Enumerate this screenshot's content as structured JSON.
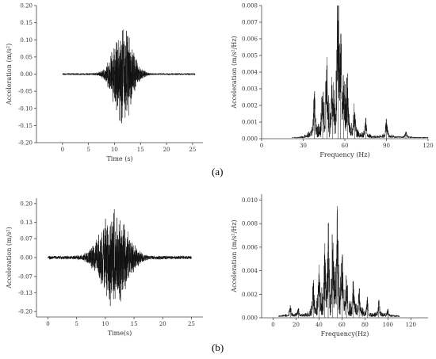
{
  "captions": {
    "a": "(a)",
    "b": "(b)"
  },
  "chart_data": [
    {
      "id": "a-time",
      "type": "line",
      "xlabel": "Time (s)",
      "ylabel": "Acceleration (m/s²)",
      "xlim": [
        -5,
        27
      ],
      "ylim": [
        -0.2,
        0.2
      ],
      "xticks": [
        0,
        5,
        10,
        15,
        20,
        25
      ],
      "xtick_labels": [
        "0",
        "5",
        "10",
        "15",
        "20",
        "25"
      ],
      "yticks": [
        -0.2,
        -0.15,
        -0.1,
        -0.05,
        0,
        0.05,
        0.1,
        0.15,
        0.2
      ],
      "ytick_labels": [
        "-0.20",
        "-0.15",
        "-0.10",
        "-0.05",
        "0.00",
        "0.05",
        "0.10",
        "0.15",
        "0.20"
      ],
      "signal": {
        "start": 0,
        "end": 25.5,
        "center": 11.6,
        "width": 2.4,
        "peak": 0.155,
        "noise": 0.003
      }
    },
    {
      "id": "a-freq",
      "type": "line",
      "xlabel": "Frequency (Hz)",
      "ylabel": "Acceleration (m/s²/Hz)",
      "xlim": [
        0,
        120
      ],
      "ylim": [
        0,
        0.008
      ],
      "xticks": [
        0,
        30,
        60,
        90,
        120
      ],
      "xtick_labels": [
        "0",
        "30",
        "60",
        "90",
        "120"
      ],
      "yticks": [
        0,
        0.001,
        0.002,
        0.003,
        0.004,
        0.005,
        0.006,
        0.007,
        0.008
      ],
      "ytick_labels": [
        "0.000",
        "0.001",
        "0.002",
        "0.003",
        "0.004",
        "0.005",
        "0.006",
        "0.007",
        "0.008"
      ],
      "spectrum": {
        "start": 22,
        "end": 120,
        "floor": 0.0001,
        "peaks": [
          [
            38,
            0.0027
          ],
          [
            44,
            0.0022
          ],
          [
            47,
            0.0049
          ],
          [
            51,
            0.0022
          ],
          [
            55,
            0.0071
          ],
          [
            57,
            0.0063
          ],
          [
            59,
            0.0035
          ],
          [
            62,
            0.0026
          ],
          [
            67,
            0.0016
          ],
          [
            75,
            0.0012
          ],
          [
            90,
            0.0012
          ],
          [
            104,
            0.0004
          ]
        ]
      }
    },
    {
      "id": "b-time",
      "type": "line",
      "xlabel": "Time(s)",
      "ylabel": "Acceleration (m/s²)",
      "xlim": [
        -2,
        27
      ],
      "ylim": [
        -0.22,
        0.22
      ],
      "xticks": [
        0,
        5,
        10,
        15,
        20,
        25
      ],
      "xtick_labels": [
        "0",
        "5",
        "10",
        "15",
        "20",
        "25"
      ],
      "yticks": [
        -0.2,
        -0.13,
        -0.07,
        0,
        0.07,
        0.13,
        0.2
      ],
      "ytick_labels": [
        "-0.20",
        "-0.13",
        "-0.07",
        "0.00",
        "0.07",
        "0.13",
        "0.20"
      ],
      "signal": {
        "start": 0,
        "end": 25,
        "center": 11.5,
        "width": 3.0,
        "peak": 0.19,
        "noise": 0.007
      }
    },
    {
      "id": "b-freq",
      "type": "line",
      "xlabel": "Frequency(Hz)",
      "ylabel": "Acceleration (m/s²/Hz)",
      "xlim": [
        -10,
        135
      ],
      "ylim": [
        0,
        0.0105
      ],
      "xticks": [
        0,
        20,
        40,
        60,
        80,
        100,
        120
      ],
      "xtick_labels": [
        "0",
        "20",
        "40",
        "60",
        "80",
        "100",
        "120"
      ],
      "yticks": [
        0,
        0.002,
        0.004,
        0.006,
        0.008,
        0.01
      ],
      "ytick_labels": [
        "0.000",
        "0.002",
        "0.004",
        "0.006",
        "0.008",
        "0.010"
      ],
      "spectrum": {
        "start": 5,
        "end": 110,
        "floor": 0.0002,
        "peaks": [
          [
            15,
            0.001
          ],
          [
            22,
            0.0008
          ],
          [
            35,
            0.0028
          ],
          [
            40,
            0.0045
          ],
          [
            45,
            0.0055
          ],
          [
            48,
            0.0064
          ],
          [
            52,
            0.0058
          ],
          [
            56,
            0.0095
          ],
          [
            60,
            0.0052
          ],
          [
            64,
            0.0032
          ],
          [
            70,
            0.003
          ],
          [
            75,
            0.0025
          ],
          [
            82,
            0.0015
          ],
          [
            92,
            0.0015
          ],
          [
            100,
            0.0005
          ]
        ]
      }
    }
  ]
}
